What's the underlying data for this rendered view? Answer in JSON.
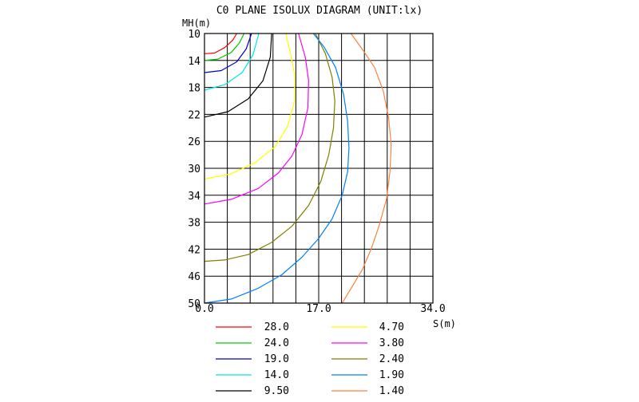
{
  "chart_data": {
    "type": "line",
    "title": "C0 PLANE ISOLUX DIAGRAM (UNIT:lx)",
    "xlabel": "S(m)",
    "ylabel": "MH(m)",
    "xlim": [
      0,
      34
    ],
    "ylim": [
      10,
      50
    ],
    "x_ticks": [
      "0.0",
      "17.0",
      "34.0"
    ],
    "y_ticks": [
      "10",
      "14",
      "18",
      "22",
      "26",
      "30",
      "34",
      "38",
      "42",
      "46",
      "50"
    ],
    "grid": true,
    "legend_position": "bottom",
    "series": [
      {
        "name": "28.0",
        "color": "#ff0000",
        "points": [
          [
            0,
            13.0
          ],
          [
            1.5,
            12.9
          ],
          [
            3.0,
            12.1
          ],
          [
            4.2,
            11.0
          ],
          [
            4.8,
            10.0
          ]
        ]
      },
      {
        "name": "24.0",
        "color": "#00cc00",
        "points": [
          [
            0,
            14.0
          ],
          [
            2.0,
            13.8
          ],
          [
            4.0,
            12.8
          ],
          [
            5.2,
            11.4
          ],
          [
            5.9,
            10.0
          ]
        ]
      },
      {
        "name": "19.0",
        "color": "#0000cc",
        "points": [
          [
            0,
            15.8
          ],
          [
            2.5,
            15.5
          ],
          [
            4.8,
            14.2
          ],
          [
            6.2,
            12.3
          ],
          [
            7.0,
            10.0
          ]
        ]
      },
      {
        "name": "14.0",
        "color": "#00e8e8",
        "points": [
          [
            0,
            18.4
          ],
          [
            3.0,
            17.6
          ],
          [
            5.6,
            15.8
          ],
          [
            7.2,
            13.2
          ],
          [
            8.1,
            10.0
          ]
        ]
      },
      {
        "name": "9.50",
        "color": "#000000",
        "points": [
          [
            0,
            22.4
          ],
          [
            3.5,
            21.6
          ],
          [
            6.5,
            19.7
          ],
          [
            8.7,
            17.0
          ],
          [
            9.8,
            13.5
          ],
          [
            10.0,
            10.0
          ]
        ]
      },
      {
        "name": "4.70",
        "color": "#ffff00",
        "points": [
          [
            0,
            31.6
          ],
          [
            4.0,
            30.8
          ],
          [
            7.5,
            29.2
          ],
          [
            10.5,
            26.8
          ],
          [
            12.4,
            23.7
          ],
          [
            13.4,
            20.0
          ],
          [
            13.4,
            16.0
          ],
          [
            12.8,
            13.0
          ],
          [
            12.1,
            10.0
          ]
        ]
      },
      {
        "name": "3.80",
        "color": "#ff00ff",
        "points": [
          [
            0,
            35.3
          ],
          [
            4.0,
            34.6
          ],
          [
            8.0,
            33.0
          ],
          [
            11.0,
            30.7
          ],
          [
            13.0,
            28.2
          ],
          [
            14.5,
            25.0
          ],
          [
            15.4,
            21.0
          ],
          [
            15.5,
            17.0
          ],
          [
            15.0,
            13.5
          ],
          [
            14.0,
            10.0
          ]
        ]
      },
      {
        "name": "2.40",
        "color": "#7f7f00",
        "points": [
          [
            0,
            43.8
          ],
          [
            3.0,
            43.6
          ],
          [
            6.5,
            42.8
          ],
          [
            10.0,
            41.0
          ],
          [
            13.0,
            38.6
          ],
          [
            15.5,
            35.5
          ],
          [
            17.3,
            32.0
          ],
          [
            18.5,
            28.0
          ],
          [
            19.2,
            24.0
          ],
          [
            19.4,
            20.0
          ],
          [
            19.0,
            16.5
          ],
          [
            18.0,
            13.0
          ],
          [
            16.5,
            10.0
          ]
        ]
      },
      {
        "name": "1.90",
        "color": "#0080ff",
        "points": [
          [
            0,
            50.0
          ],
          [
            4.0,
            49.4
          ],
          [
            8.0,
            47.8
          ],
          [
            11.5,
            45.8
          ],
          [
            14.5,
            43.2
          ],
          [
            17.0,
            40.4
          ],
          [
            19.0,
            37.5
          ],
          [
            20.5,
            34.0
          ],
          [
            21.3,
            30.5
          ],
          [
            21.5,
            27.0
          ],
          [
            21.3,
            23.0
          ],
          [
            20.7,
            19.0
          ],
          [
            19.5,
            15.0
          ],
          [
            17.8,
            12.0
          ],
          [
            16.2,
            10.0
          ]
        ]
      },
      {
        "name": "1.40",
        "color": "#ff8040",
        "points": [
          [
            20.5,
            50.0
          ],
          [
            22.0,
            47.5
          ],
          [
            23.5,
            45.0
          ],
          [
            24.8,
            42.0
          ],
          [
            26.0,
            38.5
          ],
          [
            27.1,
            34.5
          ],
          [
            27.6,
            30.5
          ],
          [
            27.8,
            26.5
          ],
          [
            27.4,
            22.5
          ],
          [
            26.6,
            18.5
          ],
          [
            25.3,
            15.0
          ],
          [
            23.6,
            12.5
          ],
          [
            21.8,
            10.0
          ]
        ]
      }
    ]
  }
}
